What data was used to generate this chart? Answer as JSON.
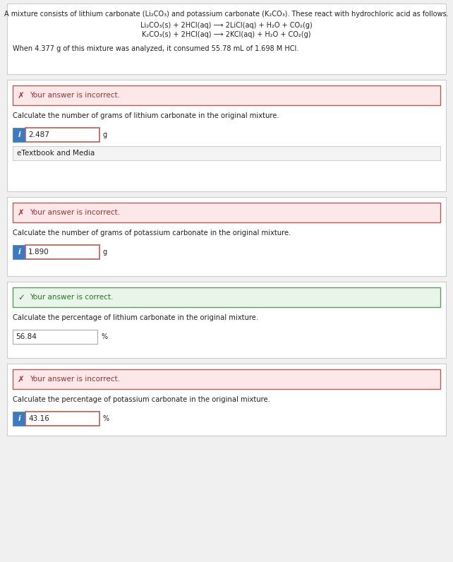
{
  "bg_color": "#f0f0f0",
  "white": "#ffffff",
  "intro_text_line1": "A mixture consists of lithium carbonate (Li₂CO₃) and potassium carbonate (K₂CO₃). These react with hydrochloric acid as follows.",
  "intro_eq1": "Li₂CO₃(s) + 2HCl(aq) ⟶ 2LiCl(aq) + H₂O + CO₂(g)",
  "intro_eq2": "K₂CO₃(s) + 2HCl(aq) ⟶ 2KCl(aq) + H₂O + CO₂(g)",
  "intro_data": "When 4.377 g of this mixture was analyzed, it consumed 55.78 mL of 1.698 M HCl.",
  "sections": [
    {
      "status": "incorrect",
      "status_text": "Your answer is incorrect.",
      "question": "Calculate the number of grams of lithium carbonate in the original mixture.",
      "answer": "2.487",
      "unit": "g",
      "has_blue_icon": true,
      "has_etextbook": true,
      "etextbook_text": "eTextbook and Media",
      "has_border_on_input": true
    },
    {
      "status": "incorrect",
      "status_text": "Your answer is incorrect.",
      "question": "Calculate the number of grams of potassium carbonate in the original mixture.",
      "answer": "1.890",
      "unit": "g",
      "has_blue_icon": true,
      "has_etextbook": false,
      "has_border_on_input": true
    },
    {
      "status": "correct",
      "status_text": "Your answer is correct.",
      "question": "Calculate the percentage of lithium carbonate in the original mixture.",
      "answer": "56.84",
      "unit": "%",
      "has_blue_icon": false,
      "has_etextbook": false,
      "has_border_on_input": false
    },
    {
      "status": "incorrect",
      "status_text": "Your answer is incorrect.",
      "question": "Calculate the percentage of potassium carbonate in the original mixture.",
      "answer": "43.16",
      "unit": "%",
      "has_blue_icon": true,
      "has_etextbook": false,
      "has_border_on_input": true
    }
  ],
  "incorrect_bg": "#fce8e8",
  "incorrect_border": "#b85c58",
  "incorrect_text_color": "#a03030",
  "correct_bg": "#eaf5ea",
  "correct_border": "#5a9e5a",
  "correct_text_color": "#2a6e2a",
  "input_border_color": "#b85c58",
  "blue_icon_color": "#3a7bbf",
  "section_border": "#cccccc",
  "text_color": "#222222",
  "panel_bg": "#ffffff"
}
